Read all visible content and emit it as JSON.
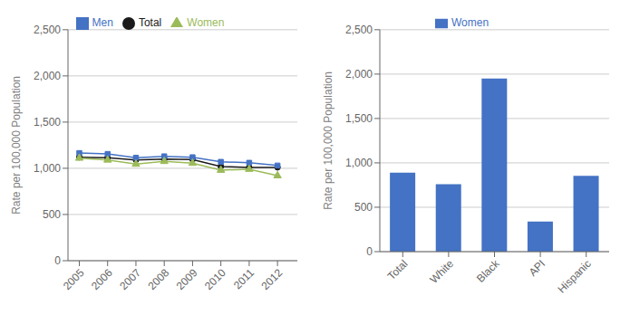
{
  "chart_data": [
    {
      "type": "line",
      "x": [
        2005,
        2006,
        2007,
        2008,
        2009,
        2010,
        2011,
        2012
      ],
      "series": [
        {
          "name": "Total",
          "color": "#1a1a1a",
          "marker": "circle",
          "values": [
            1120,
            1115,
            1090,
            1100,
            1095,
            1020,
            1010,
            1010
          ]
        },
        {
          "name": "Men",
          "color": "#4472c4",
          "marker": "square",
          "values": [
            1165,
            1155,
            1115,
            1130,
            1120,
            1070,
            1060,
            1030
          ]
        },
        {
          "name": "Women",
          "color": "#9bbb59",
          "marker": "triangle",
          "values": [
            1110,
            1090,
            1045,
            1075,
            1055,
            980,
            990,
            920
          ]
        }
      ],
      "xlim": [
        2004.6,
        2012.7
      ],
      "xticks": [
        2005,
        2006,
        2007,
        2008,
        2009,
        2010,
        2011,
        2012
      ],
      "ylim": [
        0,
        2500
      ],
      "yticks": [
        0,
        500,
        {
          "value": 1000,
          "label": "1,000"
        },
        {
          "value": 1500,
          "label": "1,500"
        },
        {
          "value": 2000,
          "label": "2,000"
        },
        {
          "value": 2500,
          "label": "2,500"
        }
      ],
      "y_label": "Rate per 100,000 Population",
      "grid": true,
      "legend": "top"
    },
    {
      "type": "bar",
      "categories": [
        "Total",
        "White",
        "Black",
        "API",
        "Hispanic"
      ],
      "series": [
        {
          "name": "Women",
          "color": "#4472c4",
          "values": [
            890,
            760,
            1950,
            340,
            855
          ]
        }
      ],
      "ylim": [
        0,
        2500
      ],
      "yticks": [
        0,
        500,
        {
          "value": 1000,
          "label": "1,000"
        },
        {
          "value": 1500,
          "label": "1,500"
        },
        {
          "value": 2000,
          "label": "2,000"
        },
        {
          "value": 2500,
          "label": "2,500"
        }
      ],
      "y_label": "Rate per 100,000 Population",
      "grid": true,
      "legend": "top"
    }
  ]
}
